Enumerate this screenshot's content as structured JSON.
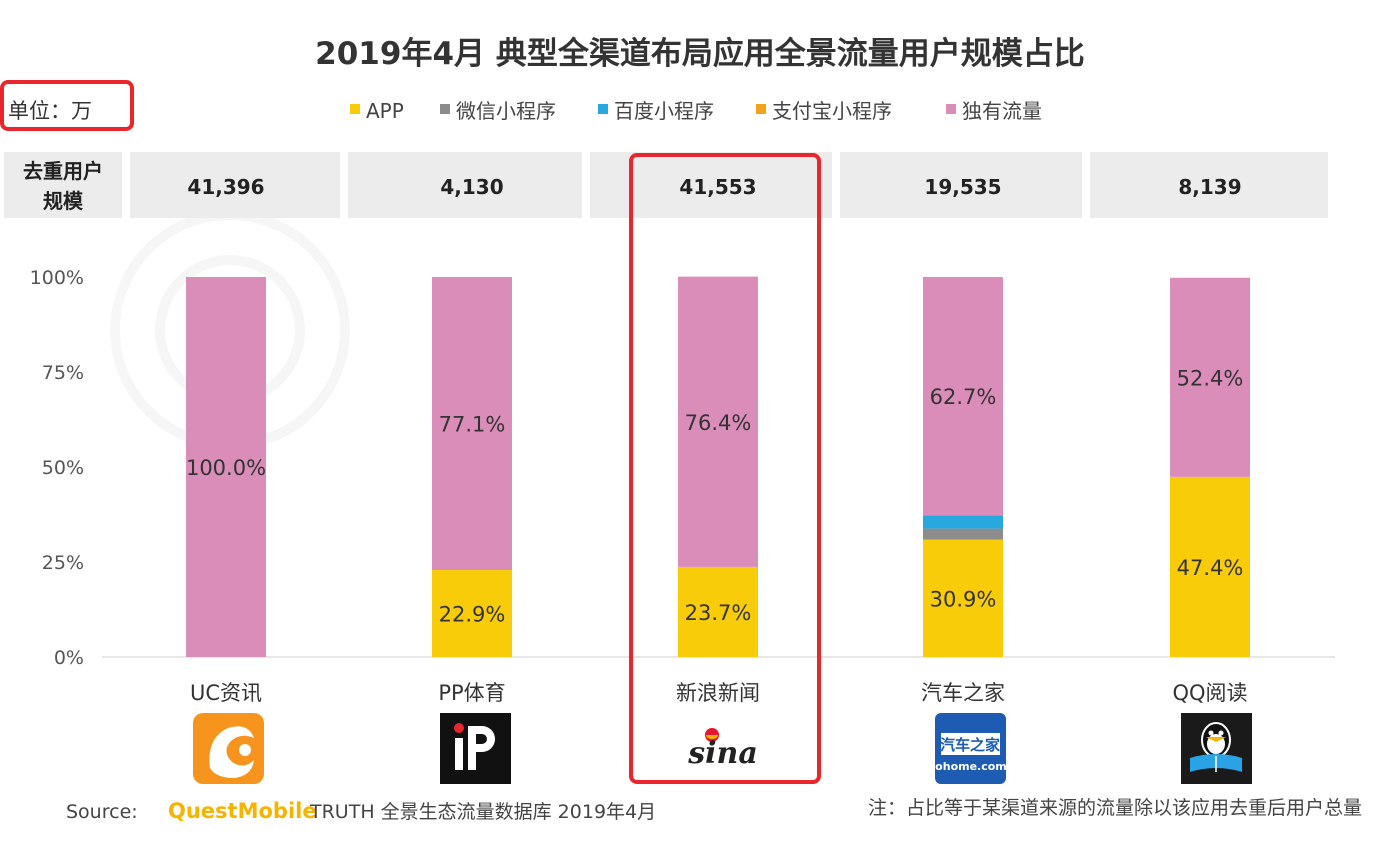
{
  "chart_data": {
    "type": "bar",
    "stacked": true,
    "title": "2019年4月 典型全渠道布局应用全景流量用户规模占比",
    "unit_label": "单位：万",
    "header_label": [
      "去重用户",
      "规模"
    ],
    "categories": [
      "UC资讯",
      "PP体育",
      "新浪新闻",
      "汽车之家",
      "QQ阅读"
    ],
    "dedup_users": [
      "41,396",
      "4,130",
      "41,553",
      "19,535",
      "8,139"
    ],
    "series": [
      {
        "name": "APP",
        "color": "#f9cc0a",
        "values": [
          0,
          22.9,
          23.7,
          30.9,
          47.4
        ],
        "labels": [
          "",
          "22.9%",
          "23.7%",
          "30.9%",
          "47.4%"
        ]
      },
      {
        "name": "微信小程序",
        "color": "#8c8c8c",
        "values": [
          0,
          0,
          0,
          2.9,
          0
        ],
        "labels": [
          "",
          "",
          "",
          "",
          ""
        ]
      },
      {
        "name": "百度小程序",
        "color": "#29a8e0",
        "values": [
          0,
          0,
          0,
          3.5,
          0
        ],
        "labels": [
          "",
          "",
          "",
          "",
          ""
        ]
      },
      {
        "name": "支付宝小程序",
        "color": "#f3a21c",
        "values": [
          0,
          0,
          0,
          0,
          0
        ],
        "labels": [
          "",
          "",
          "",
          "",
          ""
        ]
      },
      {
        "name": "独有流量",
        "color": "#d98db8",
        "values": [
          100.0,
          77.1,
          76.4,
          62.7,
          52.4
        ],
        "labels": [
          "100.0%",
          "77.1%",
          "76.4%",
          "62.7%",
          "52.4%"
        ]
      }
    ],
    "y_ticks": [
      "0%",
      "25%",
      "50%",
      "75%",
      "100%"
    ],
    "ylim": [
      0,
      100
    ],
    "legend_position": "top",
    "grid": false,
    "highlight_category": "新浪新闻",
    "highlight_color": "#e8262b"
  },
  "icons": {
    "uc": "uc-squirrel-icon",
    "pp": "pp-logo-icon",
    "sina": "sina-eye-icon",
    "autohome": "autohome-logo-icon",
    "qq": "qq-penguin-icon"
  },
  "icon_labels": {
    "sina": "sina",
    "autohome": "汽车之家",
    "autohome_sub": "autohome.com.cn"
  },
  "footer": {
    "source_prefix": "Source:",
    "brand": "QuestMobile",
    "source_rest": "TRUTH 全景生态流量数据库 2019年4月",
    "note": "注：占比等于某渠道来源的流量除以该应用去重后用户总量"
  }
}
